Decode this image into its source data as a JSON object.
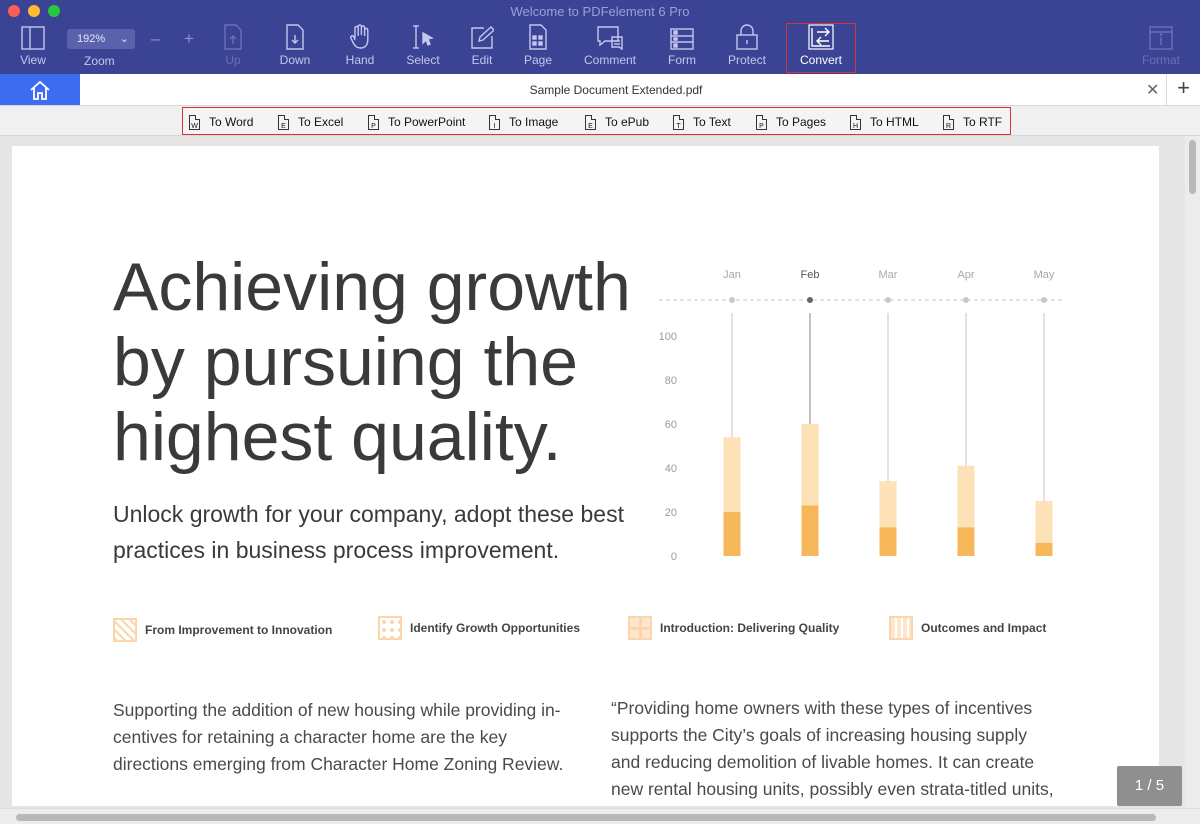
{
  "window": {
    "title": "Welcome to PDFelement 6 Pro"
  },
  "toolbar": {
    "zoom_value": "192%",
    "zoom_label": "Zoom",
    "view_label": "View",
    "up_label": "Up",
    "down_label": "Down",
    "hand_label": "Hand",
    "select_label": "Select",
    "edit_label": "Edit",
    "page_label": "Page",
    "comment_label": "Comment",
    "form_label": "Form",
    "protect_label": "Protect",
    "convert_label": "Convert",
    "format_label": "Format",
    "zoom_out_glyph": "–",
    "zoom_in_glyph": "+"
  },
  "tab": {
    "title": "Sample Document Extended.pdf"
  },
  "convert_bar": {
    "items": [
      {
        "label": "To Word",
        "letter": "W"
      },
      {
        "label": "To Excel",
        "letter": "E"
      },
      {
        "label": "To PowerPoint",
        "letter": "P"
      },
      {
        "label": "To Image",
        "letter": "I"
      },
      {
        "label": "To ePub",
        "letter": "E"
      },
      {
        "label": "To Text",
        "letter": "T"
      },
      {
        "label": "To Pages",
        "letter": "P"
      },
      {
        "label": "To HTML",
        "letter": "H"
      },
      {
        "label": "To RTF",
        "letter": "R"
      }
    ]
  },
  "document": {
    "headline": "Achieving growth by pursuing the highest quality.",
    "subhead": "Unlock growth for your company, adopt these best practices in business process improvement.",
    "legend": [
      {
        "label": "From Improvement to Innovation"
      },
      {
        "label": "Identify Growth Opportunities"
      },
      {
        "label": "Introduction: Delivering Quality"
      },
      {
        "label": "Outcomes and Impact"
      }
    ],
    "body_left": "Supporting the addition of new housing while providing in-centives for retaining a character home are the key directions emerging from Character Home Zoning Review.",
    "body_right": "“Providing home owners with these types of incentives supports the City’s goals of increasing housing supply and reducing demolition of livable homes.  It can create new rental housing units, possibly even strata-titled units, while"
  },
  "chart_data": {
    "type": "bar",
    "categories": [
      "Jan",
      "Feb",
      "Mar",
      "Apr",
      "May"
    ],
    "highlighted_category": "Feb",
    "yticks": [
      0,
      20,
      40,
      60,
      80,
      100
    ],
    "ylim": [
      0,
      100
    ],
    "series": [
      {
        "values": [
          20,
          23,
          13,
          13,
          6
        ]
      },
      {
        "values": [
          34,
          37,
          21,
          28,
          19
        ]
      }
    ],
    "colors": {
      "dark": "#f5b759",
      "light": "#fde1b7",
      "line": "#cfcfcf",
      "axis": "#c8c8c8"
    }
  },
  "pagination": {
    "indicator": "1 / 5"
  },
  "colors": {
    "toolbar_bg": "#3b4395",
    "home_tab": "#3d6cf0",
    "highlight_border": "#d63333"
  }
}
